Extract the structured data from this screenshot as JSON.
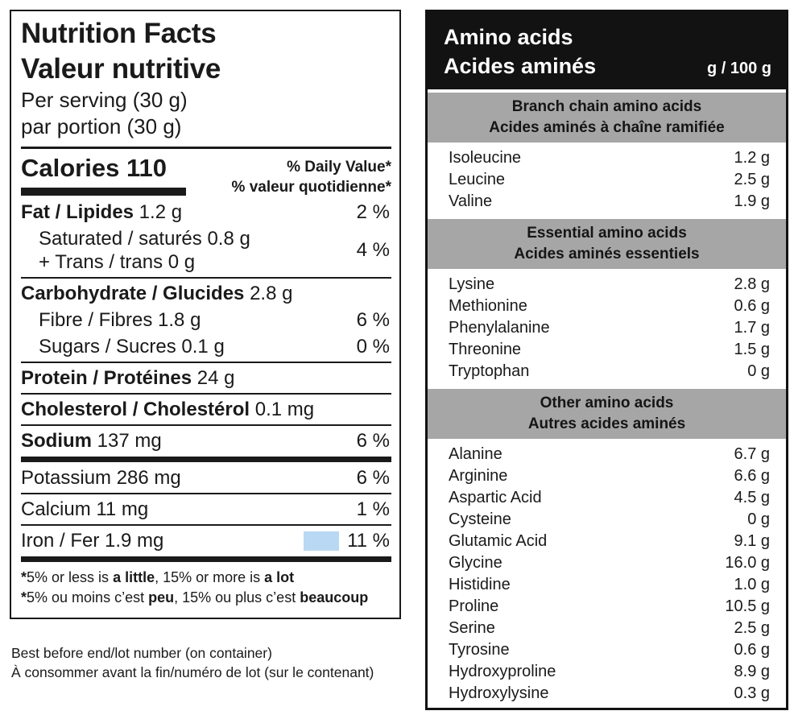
{
  "colors": {
    "highlight_blue": "#b9d8f3",
    "band_gray": "#a6a6a6",
    "ink_black": "#1a1a1a"
  },
  "nutrition_facts": {
    "title_en": "Nutrition Facts",
    "title_fr": "Valeur nutritive",
    "serving_en": "Per serving (30 g)",
    "serving_fr": "par portion (30 g)",
    "calories_label": "Calories",
    "calories_value": "110",
    "daily_value_en": "% Daily Value*",
    "daily_value_fr": "% valeur quotidienne*",
    "rows": [
      {
        "lines": [
          {
            "bold": "Fat / Lipides",
            "rest": " 1.2 g",
            "indent": false
          }
        ],
        "pct": "2 %",
        "divider": "none",
        "highlight": false
      },
      {
        "lines": [
          {
            "bold": "",
            "rest": "Saturated / saturés 0.8 g",
            "indent": true
          },
          {
            "bold": "",
            "rest": "+ Trans / trans 0 g",
            "indent": true
          }
        ],
        "pct": "4 %",
        "divider": "thin",
        "highlight": false
      },
      {
        "lines": [
          {
            "bold": "Carbohydrate / Glucides",
            "rest": " 2.8 g",
            "indent": false
          }
        ],
        "pct": "",
        "divider": "none",
        "highlight": false
      },
      {
        "lines": [
          {
            "bold": "",
            "rest": "Fibre / Fibres 1.8 g",
            "indent": true
          }
        ],
        "pct": "6 %",
        "divider": "none",
        "highlight": false
      },
      {
        "lines": [
          {
            "bold": "",
            "rest": "Sugars / Sucres 0.1 g",
            "indent": true
          }
        ],
        "pct": "0 %",
        "divider": "thin",
        "highlight": false
      },
      {
        "lines": [
          {
            "bold": "Protein / Protéines",
            "rest": " 24 g",
            "indent": false
          }
        ],
        "pct": "",
        "divider": "thin",
        "highlight": false
      },
      {
        "lines": [
          {
            "bold": "Cholesterol / Cholestérol",
            "rest": " 0.1 mg",
            "indent": false
          }
        ],
        "pct": "",
        "divider": "thin",
        "highlight": false
      },
      {
        "lines": [
          {
            "bold": "Sodium",
            "rest": " 137 mg",
            "indent": false
          }
        ],
        "pct": "6 %",
        "divider": "thick",
        "highlight": false
      },
      {
        "lines": [
          {
            "bold": "",
            "rest": "Potassium 286 mg",
            "indent": false
          }
        ],
        "pct": "6 %",
        "divider": "thin",
        "highlight": false
      },
      {
        "lines": [
          {
            "bold": "",
            "rest": "Calcium 11 mg",
            "indent": false
          }
        ],
        "pct": "1 %",
        "divider": "thin",
        "highlight": false
      },
      {
        "lines": [
          {
            "bold": "",
            "rest": "Iron / Fer 1.9 mg",
            "indent": false
          }
        ],
        "pct": "11 %",
        "divider": "thick",
        "highlight": true
      }
    ],
    "footnote_en": [
      {
        "text": "*",
        "bold": true
      },
      {
        "text": "5% or less is ",
        "bold": false
      },
      {
        "text": "a little",
        "bold": true
      },
      {
        "text": ", 15% or more is ",
        "bold": false
      },
      {
        "text": "a lot",
        "bold": true
      }
    ],
    "footnote_fr": [
      {
        "text": "*",
        "bold": true
      },
      {
        "text": "5% ou moins c’est ",
        "bold": false
      },
      {
        "text": "peu",
        "bold": true
      },
      {
        "text": ", 15% ou plus c’est ",
        "bold": false
      },
      {
        "text": "beaucoup",
        "bold": true
      }
    ]
  },
  "amino_acids": {
    "title_en": "Amino acids",
    "title_fr": "Acides aminés",
    "unit": "g / 100 g",
    "groups": [
      {
        "header_en": "Branch chain amino acids",
        "header_fr": "Acides aminés à chaîne ramifiée",
        "rows": [
          {
            "name": "Isoleucine",
            "value": "1.2 g"
          },
          {
            "name": "Leucine",
            "value": "2.5 g"
          },
          {
            "name": "Valine",
            "value": "1.9 g"
          }
        ]
      },
      {
        "header_en": "Essential amino acids",
        "header_fr": "Acides aminés essentiels",
        "rows": [
          {
            "name": "Lysine",
            "value": "2.8 g"
          },
          {
            "name": "Methionine",
            "value": "0.6 g"
          },
          {
            "name": "Phenylalanine",
            "value": "1.7 g"
          },
          {
            "name": "Threonine",
            "value": "1.5 g"
          },
          {
            "name": "Tryptophan",
            "value": "0 g"
          }
        ]
      },
      {
        "header_en": "Other amino acids",
        "header_fr": "Autres acides aminés",
        "rows": [
          {
            "name": "Alanine",
            "value": "6.7 g"
          },
          {
            "name": "Arginine",
            "value": "6.6 g"
          },
          {
            "name": "Aspartic Acid",
            "value": "4.5 g"
          },
          {
            "name": "Cysteine",
            "value": "0 g"
          },
          {
            "name": "Glutamic Acid",
            "value": "9.1 g"
          },
          {
            "name": "Glycine",
            "value": "16.0 g"
          },
          {
            "name": "Histidine",
            "value": "1.0 g"
          },
          {
            "name": "Proline",
            "value": "10.5 g"
          },
          {
            "name": "Serine",
            "value": "2.5 g"
          },
          {
            "name": "Tyrosine",
            "value": "0.6 g"
          },
          {
            "name": "Hydroxyproline",
            "value": "8.9 g"
          },
          {
            "name": "Hydroxylysine",
            "value": "0.3 g"
          }
        ]
      }
    ]
  },
  "footer": {
    "line_en": "Best before end/lot number (on container)",
    "line_fr": "À consommer avant la fin/numéro de lot (sur le contenant)"
  }
}
